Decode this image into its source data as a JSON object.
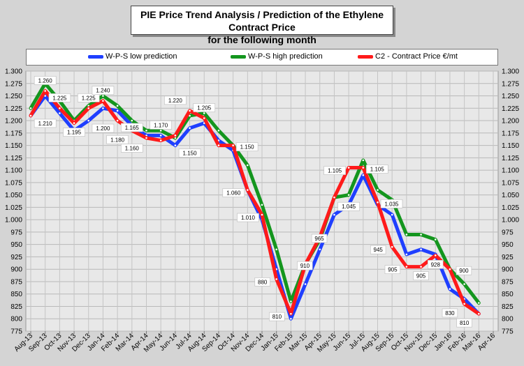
{
  "title": {
    "line1": "PIE Price Trend Analysis / Prediction of the Ethylene Contract Price",
    "line2": "for the following month"
  },
  "colors": {
    "low": "#1f3fff",
    "high": "#14961e",
    "contract": "#ff1a1a",
    "plot_bg": "#e8e8e8",
    "page_bg": "#d4d4d4"
  },
  "chart_data": {
    "type": "line",
    "title": "PIE Price Trend Analysis / Prediction of the Ethylene Contract Price for the following month",
    "xlabel": "",
    "ylabel": "",
    "ylim": [
      775,
      1300
    ],
    "y_ticks": [
      "775",
      "800",
      "825",
      "850",
      "875",
      "900",
      "925",
      "950",
      "975",
      "1.000",
      "1.025",
      "1.050",
      "1.075",
      "1.100",
      "1.125",
      "1.150",
      "1.175",
      "1.200",
      "1.225",
      "1.250",
      "1.275",
      "1.300"
    ],
    "y_tick_values": [
      775,
      800,
      825,
      850,
      875,
      900,
      925,
      950,
      975,
      1000,
      1025,
      1050,
      1075,
      1100,
      1125,
      1150,
      1175,
      1200,
      1225,
      1250,
      1275,
      1300
    ],
    "grid": true,
    "legend_position": "top",
    "categories": [
      "Aug-13",
      "Sep-13",
      "Oct-13",
      "Nov-13",
      "Dec-13",
      "Jan-14",
      "Feb-14",
      "Mar-14",
      "Apr-14",
      "May-14",
      "Jun-14",
      "Jul-14",
      "Aug-14",
      "Sep-14",
      "Oct-14",
      "Nov-14",
      "Dec-14",
      "Jan-15",
      "Feb-15",
      "Mar-15",
      "Apr-15",
      "May-15",
      "Jun-15",
      "Jul-15",
      "Aug-15",
      "Sep-15",
      "Oct-15",
      "Nov-15",
      "Dec-15",
      "Jan-16",
      "Feb-16",
      "Mar-16",
      "Apr-16"
    ],
    "series": [
      {
        "name": "W-P-S low prediction",
        "color": "#1f3fff",
        "values": [
          1210,
          1250,
          1215,
          1180,
          1200,
          1225,
          1220,
          1190,
          1170,
          1170,
          1150,
          1185,
          1195,
          1160,
          1140,
          1060,
          1000,
          900,
          800,
          870,
          940,
          1010,
          1030,
          1090,
          1030,
          1010,
          930,
          940,
          930,
          860,
          840,
          810,
          null
        ]
      },
      {
        "name": "W-P-S high prediction",
        "color": "#14961e",
        "values": [
          1225,
          1275,
          1240,
          1200,
          1230,
          1250,
          1230,
          1200,
          1180,
          1180,
          1165,
          1210,
          1215,
          1180,
          1150,
          1110,
          1030,
          940,
          835,
          910,
          960,
          1045,
          1050,
          1120,
          1060,
          1040,
          970,
          970,
          960,
          900,
          870,
          832,
          null
        ]
      },
      {
        "name": "C2 - Contract Price €/mt",
        "color": "#ff1a1a",
        "values": [
          1210,
          1260,
          1225,
          1195,
          1225,
          1240,
          1200,
          1180,
          1165,
          1160,
          1170,
          1220,
          1205,
          1150,
          1150,
          1060,
          1010,
          880,
          810,
          910,
          965,
          1045,
          1105,
          1105,
          1035,
          945,
          905,
          905,
          928,
          900,
          830,
          810,
          null
        ]
      }
    ],
    "data_labels": [
      {
        "text": "1.260",
        "index": 1,
        "value": 1260,
        "pos": "above"
      },
      {
        "text": "1.210",
        "index": 1,
        "value": 1210,
        "pos": "low"
      },
      {
        "text": "1.225",
        "index": 2,
        "value": 1225,
        "pos": "above"
      },
      {
        "text": "1.195",
        "index": 3,
        "value": 1195,
        "pos": "below"
      },
      {
        "text": "1.225",
        "index": 4,
        "value": 1225,
        "pos": "above"
      },
      {
        "text": "1.240",
        "index": 5,
        "value": 1240,
        "pos": "above"
      },
      {
        "text": "1.200",
        "index": 5,
        "value": 1200,
        "pos": "low"
      },
      {
        "text": "1.180",
        "index": 6,
        "value": 1180,
        "pos": "below"
      },
      {
        "text": "1.165",
        "index": 7,
        "value": 1165,
        "pos": "above"
      },
      {
        "text": "1.160",
        "index": 7,
        "value": 1160,
        "pos": "low"
      },
      {
        "text": "1.170",
        "index": 9,
        "value": 1170,
        "pos": "above"
      },
      {
        "text": "1.220",
        "index": 10,
        "value": 1220,
        "pos": "above"
      },
      {
        "text": "1.205",
        "index": 12,
        "value": 1205,
        "pos": "above"
      },
      {
        "text": "1.150",
        "index": 11,
        "value": 1150,
        "pos": "low"
      },
      {
        "text": "1.150",
        "index": 14,
        "value": 1150,
        "pos": "right"
      },
      {
        "text": "1.060",
        "index": 15,
        "value": 1060,
        "pos": "left"
      },
      {
        "text": "1.010",
        "index": 16,
        "value": 1010,
        "pos": "left"
      },
      {
        "text": "880",
        "index": 17,
        "value": 880,
        "pos": "left"
      },
      {
        "text": "810",
        "index": 18,
        "value": 810,
        "pos": "left"
      },
      {
        "text": "910",
        "index": 18,
        "value": 910,
        "pos": "right"
      },
      {
        "text": "965",
        "index": 19,
        "value": 965,
        "pos": "right"
      },
      {
        "text": "1.105",
        "index": 22,
        "value": 1105,
        "pos": "left"
      },
      {
        "text": "1.045",
        "index": 22,
        "value": 1045,
        "pos": "below"
      },
      {
        "text": "1.105",
        "index": 23,
        "value": 1105,
        "pos": "right"
      },
      {
        "text": "1.035",
        "index": 24,
        "value": 1035,
        "pos": "right"
      },
      {
        "text": "945",
        "index": 25,
        "value": 945,
        "pos": "left"
      },
      {
        "text": "905",
        "index": 26,
        "value": 905,
        "pos": "left"
      },
      {
        "text": "905",
        "index": 27,
        "value": 905,
        "pos": "below"
      },
      {
        "text": "928",
        "index": 28,
        "value": 928,
        "pos": "below"
      },
      {
        "text": "900",
        "index": 29,
        "value": 900,
        "pos": "right"
      },
      {
        "text": "830",
        "index": 29,
        "value": 830,
        "pos": "below"
      },
      {
        "text": "810",
        "index": 30,
        "value": 810,
        "pos": "below"
      }
    ]
  }
}
